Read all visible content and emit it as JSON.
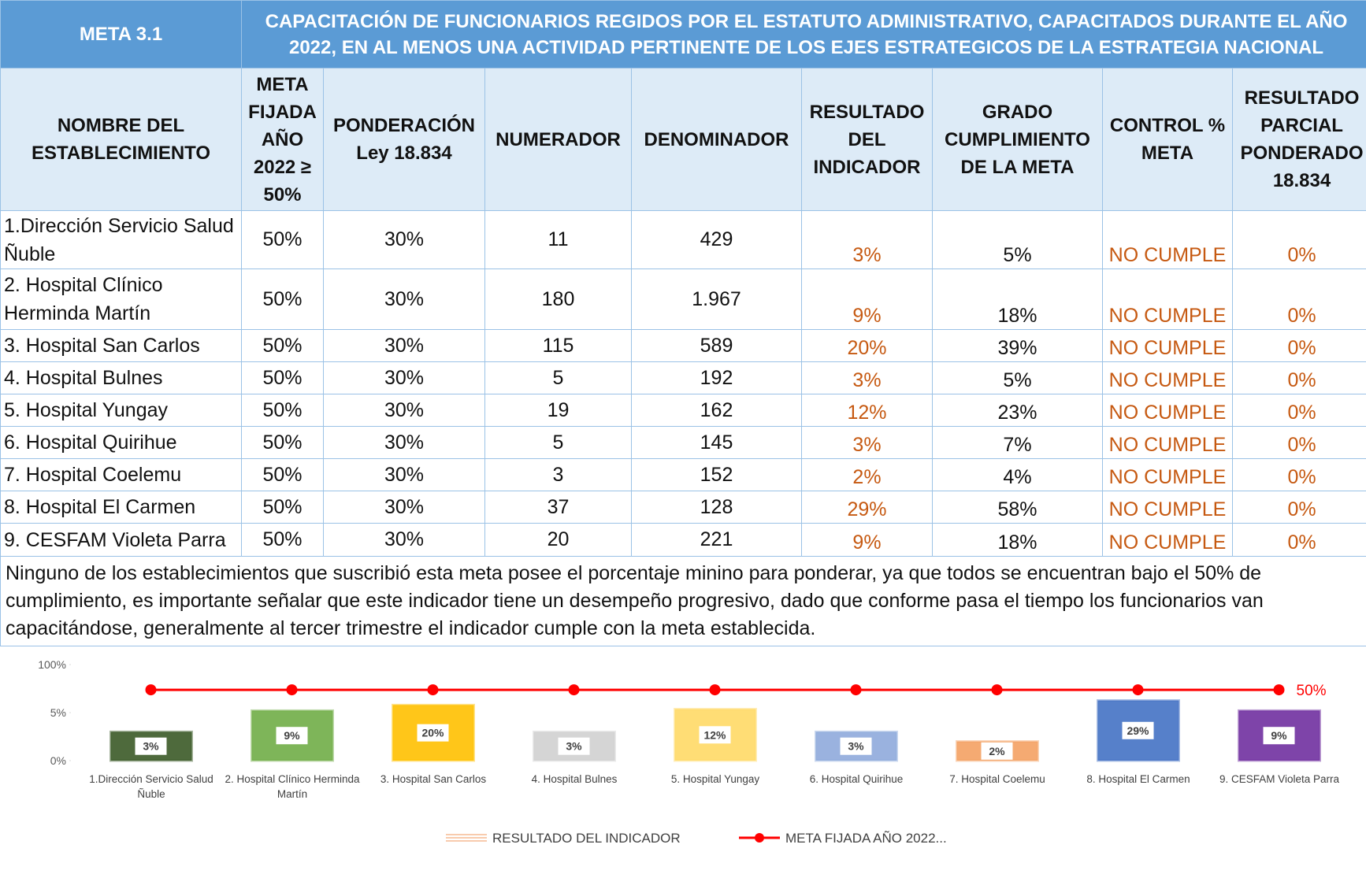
{
  "header": {
    "meta": "META 3.1",
    "title": "CAPACITACIÓN DE FUNCIONARIOS REGIDOS POR EL ESTATUTO ADMINISTRATIVO, CAPACITADOS DURANTE EL AÑO 2022, EN AL MENOS UNA ACTIVIDAD PERTINENTE DE LOS EJES ESTRATEGICOS DE LA ESTRATEGIA NACIONAL"
  },
  "table": {
    "columns": [
      "NOMBRE DEL ESTABLECIMIENTO",
      "META FIJADA AÑO 2022 ≥ 50%",
      "PONDERACIÓN Ley 18.834",
      "NUMERADOR",
      "DENOMINADOR",
      "RESULTADO DEL INDICADOR",
      "GRADO CUMPLIMIENTO DE LA META",
      "CONTROL % META",
      "RESULTADO PARCIAL PONDERADO 18.834"
    ],
    "rows": [
      [
        "1.Dirección Servicio Salud Ñuble",
        "50%",
        "30%",
        "11",
        "429",
        "3%",
        "5%",
        "NO CUMPLE",
        "0%"
      ],
      [
        "2. Hospital Clínico Herminda Martín",
        "50%",
        "30%",
        "180",
        "1.967",
        "9%",
        "18%",
        "NO CUMPLE",
        "0%"
      ],
      [
        "3. Hospital San Carlos",
        "50%",
        "30%",
        "115",
        "589",
        "20%",
        "39%",
        "NO CUMPLE",
        "0%"
      ],
      [
        "4. Hospital Bulnes",
        "50%",
        "30%",
        "5",
        "192",
        "3%",
        "5%",
        "NO CUMPLE",
        "0%"
      ],
      [
        "5. Hospital Yungay",
        "50%",
        "30%",
        "19",
        "162",
        "12%",
        "23%",
        "NO CUMPLE",
        "0%"
      ],
      [
        "6. Hospital Quirihue",
        "50%",
        "30%",
        "5",
        "145",
        "3%",
        "7%",
        "NO CUMPLE",
        "0%"
      ],
      [
        "7. Hospital Coelemu",
        "50%",
        "30%",
        "3",
        "152",
        "2%",
        "4%",
        "NO CUMPLE",
        "0%"
      ],
      [
        "8. Hospital El Carmen",
        "50%",
        "30%",
        "37",
        "128",
        "29%",
        "58%",
        "NO CUMPLE",
        "0%"
      ],
      [
        "9. CESFAM Violeta Parra",
        "50%",
        "30%",
        "20",
        "221",
        "9%",
        "18%",
        "NO CUMPLE",
        "0%"
      ]
    ],
    "note": "Ninguno de los establecimientos que suscribió esta meta posee el porcentaje minino para ponderar, ya que todos se encuentran bajo el 50% de cumplimiento, es importante señalar que este indicador tiene un desempeño progresivo, dado que conforme pasa el tiempo los funcionarios van capacitándose, generalmente al tercer trimestre el indicador cumple con la meta establecida."
  },
  "chart_data": {
    "type": "bar",
    "categories": [
      "1.Dirección Servicio Salud Ñuble",
      "2. Hospital Clínico Herminda Martín",
      "3. Hospital San Carlos",
      "4. Hospital Bulnes",
      "5. Hospital Yungay",
      "6. Hospital Quirihue",
      "7. Hospital Coelemu",
      "8. Hospital El Carmen",
      "9. CESFAM Violeta Parra"
    ],
    "series": [
      {
        "name": "RESULTADO DEL INDICADOR",
        "type": "bar",
        "values": [
          3,
          9,
          20,
          3,
          12,
          3,
          2,
          29,
          9
        ],
        "value_labels": [
          "3%",
          "9%",
          "20%",
          "3%",
          "12%",
          "3%",
          "2%",
          "29%",
          "9%"
        ],
        "colors": [
          "#3b5a27",
          "#70ad47",
          "#ffc000",
          "#d0d0d0",
          "#ffd966",
          "#8faadc",
          "#f4a163",
          "#4472c4",
          "#7030a0"
        ]
      },
      {
        "name": "META FIJADA AÑO 2022...",
        "type": "line",
        "color": "#ff0000",
        "values": [
          50,
          50,
          50,
          50,
          50,
          50,
          50,
          50,
          50
        ],
        "value_labels": [
          null,
          null,
          null,
          null,
          null,
          null,
          null,
          null,
          "50%"
        ]
      }
    ],
    "ylim": [
      0,
      100
    ],
    "yticks": [
      {
        "value": 0,
        "label": "0%"
      },
      {
        "value": 5,
        "label": "5%"
      },
      {
        "value": 100,
        "label": "100%"
      }
    ]
  }
}
